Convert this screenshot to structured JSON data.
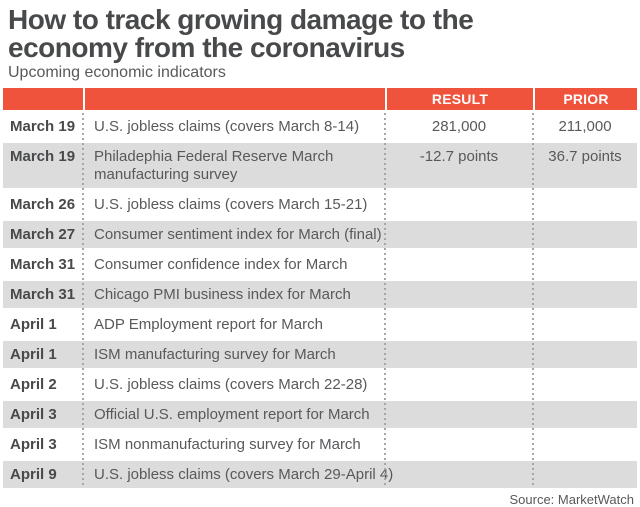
{
  "title": "How to track growing damage to the\neconomy from the coronavirus",
  "subtitle": "Upcoming economic indicators",
  "table": {
    "col_headers": {
      "date": "",
      "indicator": "",
      "result": "RESULT",
      "prior": "PRIOR"
    },
    "rows": [
      {
        "date": "March 19",
        "description": "U.S. jobless claims (covers March 8-14)",
        "result": "281,000",
        "prior": "211,000"
      },
      {
        "date": "March 19",
        "description": "Philadephia Federal Reserve March\nmanufacturing survey",
        "result": "-12.7 points",
        "prior": "36.7 points"
      },
      {
        "date": "March 26",
        "description": "U.S. jobless claims (covers March 15-21)",
        "result": "",
        "prior": ""
      },
      {
        "date": "March 27",
        "description": "Consumer sentiment index for March (final)",
        "result": "",
        "prior": ""
      },
      {
        "date": "March 31",
        "description": "Consumer confidence index for March",
        "result": "",
        "prior": ""
      },
      {
        "date": "March 31",
        "description": "Chicago PMI business index for March",
        "result": "",
        "prior": ""
      },
      {
        "date": "April 1",
        "description": "ADP Employment report for March",
        "result": "",
        "prior": ""
      },
      {
        "date": "April 1",
        "description": "ISM manufacturing survey for March",
        "result": "",
        "prior": ""
      },
      {
        "date": "April 2",
        "description": "U.S. jobless claims (covers March 22-28)",
        "result": "",
        "prior": ""
      },
      {
        "date": "April 3",
        "description": "Official U.S. employment report for March",
        "result": "",
        "prior": ""
      },
      {
        "date": "April 3",
        "description": "ISM nonmanufacturing survey for March",
        "result": "",
        "prior": ""
      },
      {
        "date": "April 9",
        "description": "U.S. jobless claims (covers March 29-April 4)",
        "result": "",
        "prior": ""
      }
    ]
  },
  "source": "Source: MarketWatch",
  "colors": {
    "accent": "#F0533C",
    "row_alt": "#DCDCDC",
    "heading_text": "#48494B",
    "body_text": "#58595B",
    "divider": "#A6A6A6"
  },
  "chart_data": {
    "type": "table",
    "title": "How to track growing damage to the economy from the coronavirus",
    "subtitle": "Upcoming economic indicators",
    "columns": [
      "",
      "",
      "RESULT",
      "PRIOR"
    ],
    "rows": [
      [
        "March 19",
        "U.S. jobless claims (covers March 8-14)",
        "281,000",
        "211,000"
      ],
      [
        "March 19",
        "Philadephia Federal Reserve March manufacturing survey",
        "-12.7 points",
        "36.7 points"
      ],
      [
        "March 26",
        "U.S. jobless claims (covers March 15-21)",
        "",
        ""
      ],
      [
        "March 27",
        "Consumer sentiment index for March (final)",
        "",
        ""
      ],
      [
        "March 31",
        "Consumer confidence index for March",
        "",
        ""
      ],
      [
        "March 31",
        "Chicago PMI business index for March",
        "",
        ""
      ],
      [
        "April 1",
        "ADP Employment report for March",
        "",
        ""
      ],
      [
        "April 1",
        "ISM manufacturing survey for March",
        "",
        ""
      ],
      [
        "April 2",
        "U.S. jobless claims (covers March 22-28)",
        "",
        ""
      ],
      [
        "April 3",
        "Official U.S. employment report for March",
        "",
        ""
      ],
      [
        "April 3",
        "ISM nonmanufacturing survey for March",
        "",
        ""
      ],
      [
        "April 9",
        "U.S. jobless claims (covers March 29-April 4)",
        "",
        ""
      ]
    ],
    "numeric_values": {
      "us_jobless_claims_march_8_14": {
        "result": 281000,
        "prior": 211000
      },
      "philadephia_fed_march_manufacturing_survey": {
        "result_points": -12.7,
        "prior_points": 36.7
      }
    },
    "source": "Source: MarketWatch",
    "layout": {
      "legend": "none",
      "grid": "dotted-column-dividers",
      "row_striping": true
    }
  }
}
